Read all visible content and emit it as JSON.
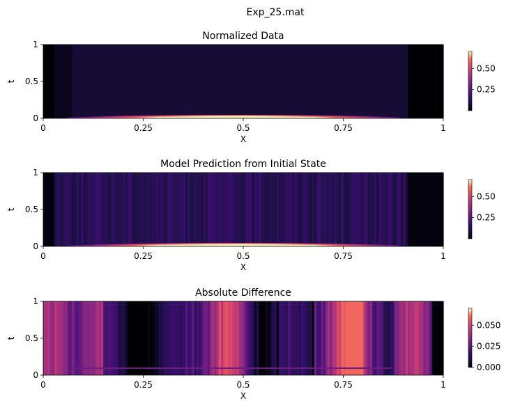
{
  "figure": {
    "title": "Exp_25.mat"
  },
  "chart_data": [
    {
      "type": "heatmap",
      "title": "Normalized Data",
      "xlabel": "X",
      "ylabel": "t",
      "xlim": [
        0,
        1
      ],
      "ylim": [
        0,
        1
      ],
      "xticks": [
        "0",
        "0.25",
        "0.5",
        "0.75",
        "1"
      ],
      "yticks": [
        "0",
        "0.5",
        "1"
      ],
      "colormap": "magma",
      "colorbar": {
        "range": [
          0.0,
          0.7
        ],
        "ticks": [
          "0.25",
          "0.50"
        ]
      }
    },
    {
      "type": "heatmap",
      "title": "Model Prediction from Initial State",
      "xlabel": "X",
      "ylabel": "t",
      "xlim": [
        0,
        1
      ],
      "ylim": [
        0,
        1
      ],
      "xticks": [
        "0",
        "0.25",
        "0.5",
        "0.75",
        "1"
      ],
      "yticks": [
        "0",
        "0.5",
        "1"
      ],
      "colormap": "magma",
      "colorbar": {
        "range": [
          0.0,
          0.7
        ],
        "ticks": [
          "0.25",
          "0.50"
        ]
      }
    },
    {
      "type": "heatmap",
      "title": "Absolute Difference",
      "xlabel": "X",
      "ylabel": "t",
      "xlim": [
        0,
        1
      ],
      "ylim": [
        0,
        1
      ],
      "xticks": [
        "0",
        "0.25",
        "0.5",
        "0.75",
        "1"
      ],
      "yticks": [
        "0",
        "0.5",
        "1"
      ],
      "colormap": "magma",
      "colorbar": {
        "range": [
          0.0,
          0.07
        ],
        "ticks": [
          "0.000",
          "0.025",
          "0.050"
        ]
      }
    }
  ]
}
